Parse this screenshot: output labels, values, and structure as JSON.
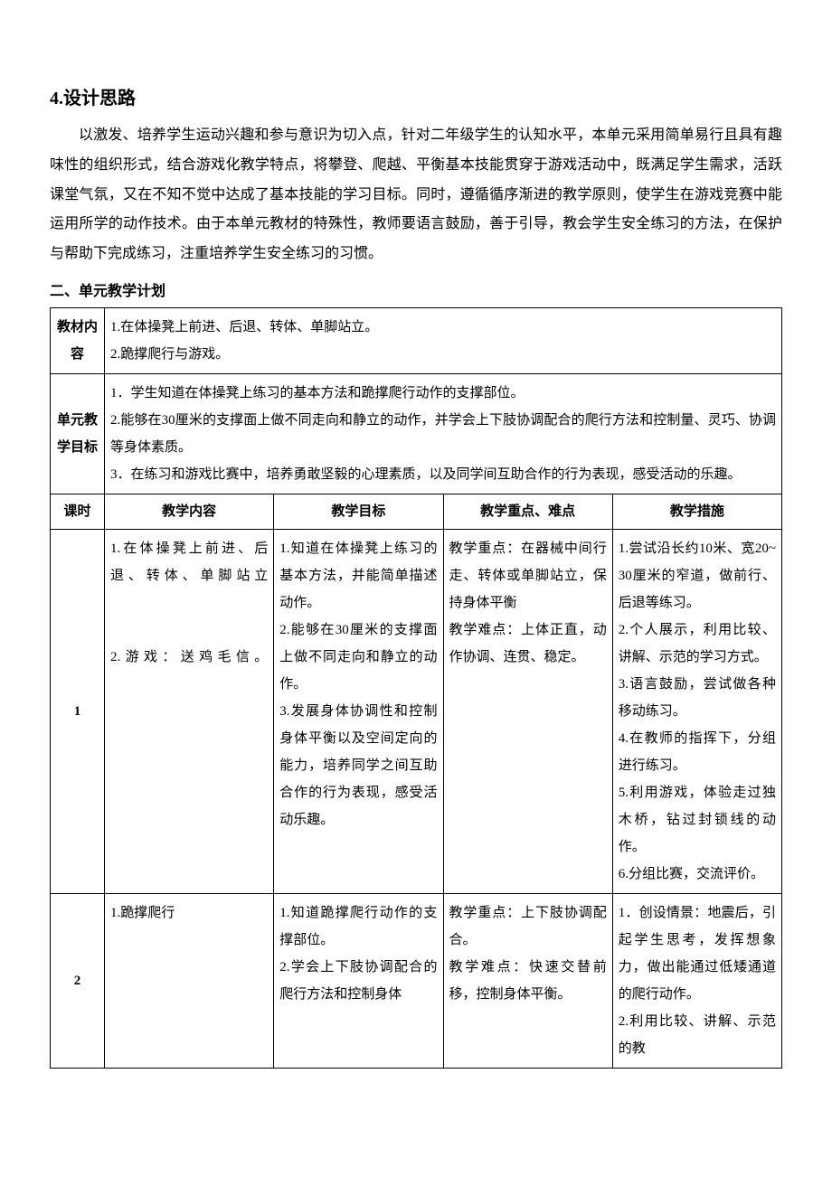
{
  "section4": {
    "heading": "4.设计思路",
    "paragraph": "以激发、培养学生运动兴趣和参与意识为切入点，针对二年级学生的认知水平，本单元采用简单易行且具有趣味性的组织形式，结合游戏化教学特点，将攀登、爬越、平衡基本技能贯穿于游戏活动中，既满足学生需求，活跃课堂气氛，又在不知不觉中达成了基本技能的学习目标。同时，遵循循序渐进的教学原则，使学生在游戏竞赛中能运用所学的动作技术。由于本单元教材的特殊性，教师要语言鼓励，善于引导，教会学生安全练习的方法，在保护与帮助下完成练习，注重培养学生安全练习的习惯。"
  },
  "section2": {
    "title": "二、单元教学计划",
    "row1": {
      "label": "教材内容",
      "content": "1.在体操凳上前进、后退、转体、单脚站立。\n2.跪撑爬行与游戏。"
    },
    "row2": {
      "label": "单元教学目标",
      "content": "1．学生知道在体操凳上练习的基本方法和跪撑爬行动作的支撑部位。\n2.能够在30厘米的支撑面上做不同走向和静立的动作，并学会上下肢协调配合的爬行方法和控制量、灵巧、协调等身体素质。\n3．在练习和游戏比赛中，培养勇敢坚毅的心理素质，以及同学间互助合作的行为表现，感受活动的乐趣。"
    },
    "table_header": {
      "col0": "课时",
      "col1": "教学内容",
      "col2": "教学目标",
      "col3": "教学重点、难点",
      "col4": "教学措施"
    },
    "lesson1": {
      "num": "1",
      "content": "1.在体操凳上前进、后退、转体、单脚站立\n\n\n2.游戏：送鸡毛信。",
      "goal": "1.知道在体操凳上练习的基本方法，并能简单描述动作。\n2.能够在30厘米的支撑面上做不同走向和静立的动作。\n3.发展身体协调性和控制身体平衡以及空间定向的能力，培养同学之间互助合作的行为表现，感受活动乐趣。",
      "key": "教学重点：在器械中间行走、转体或单脚站立，保持身体平衡\n教学难点：上体正直，动作协调、连贯、稳定。",
      "measure": "1.尝试沿长约10米、宽20~30厘米的窄道，做前行、后退等练习。\n2.个人展示，利用比较、讲解、示范的学习方式。\n3.语言鼓励，尝试做各种移动练习。\n4.在教师的指挥下，分组进行练习。\n5.利用游戏，体验走过独木桥，钻过封锁线的动作。\n6.分组比赛，交流评价。"
    },
    "lesson2": {
      "num": "2",
      "content": "1.跪撑爬行",
      "goal": "1.知道跪撑爬行动作的支撑部位。\n2.学会上下肢协调配合的爬行方法和控制身体",
      "key": "教学重点：上下肢协调配合。\n教学难点：快速交替前移，控制身体平衡。",
      "measure": "1．创设情景：地震后，引起学生思考，发挥想象力，做出能通过低矮通道的爬行动作。\n2.利用比较、讲解、示范的教"
    }
  },
  "colors": {
    "text": "#000000",
    "background": "#ffffff",
    "border": "#000000"
  }
}
